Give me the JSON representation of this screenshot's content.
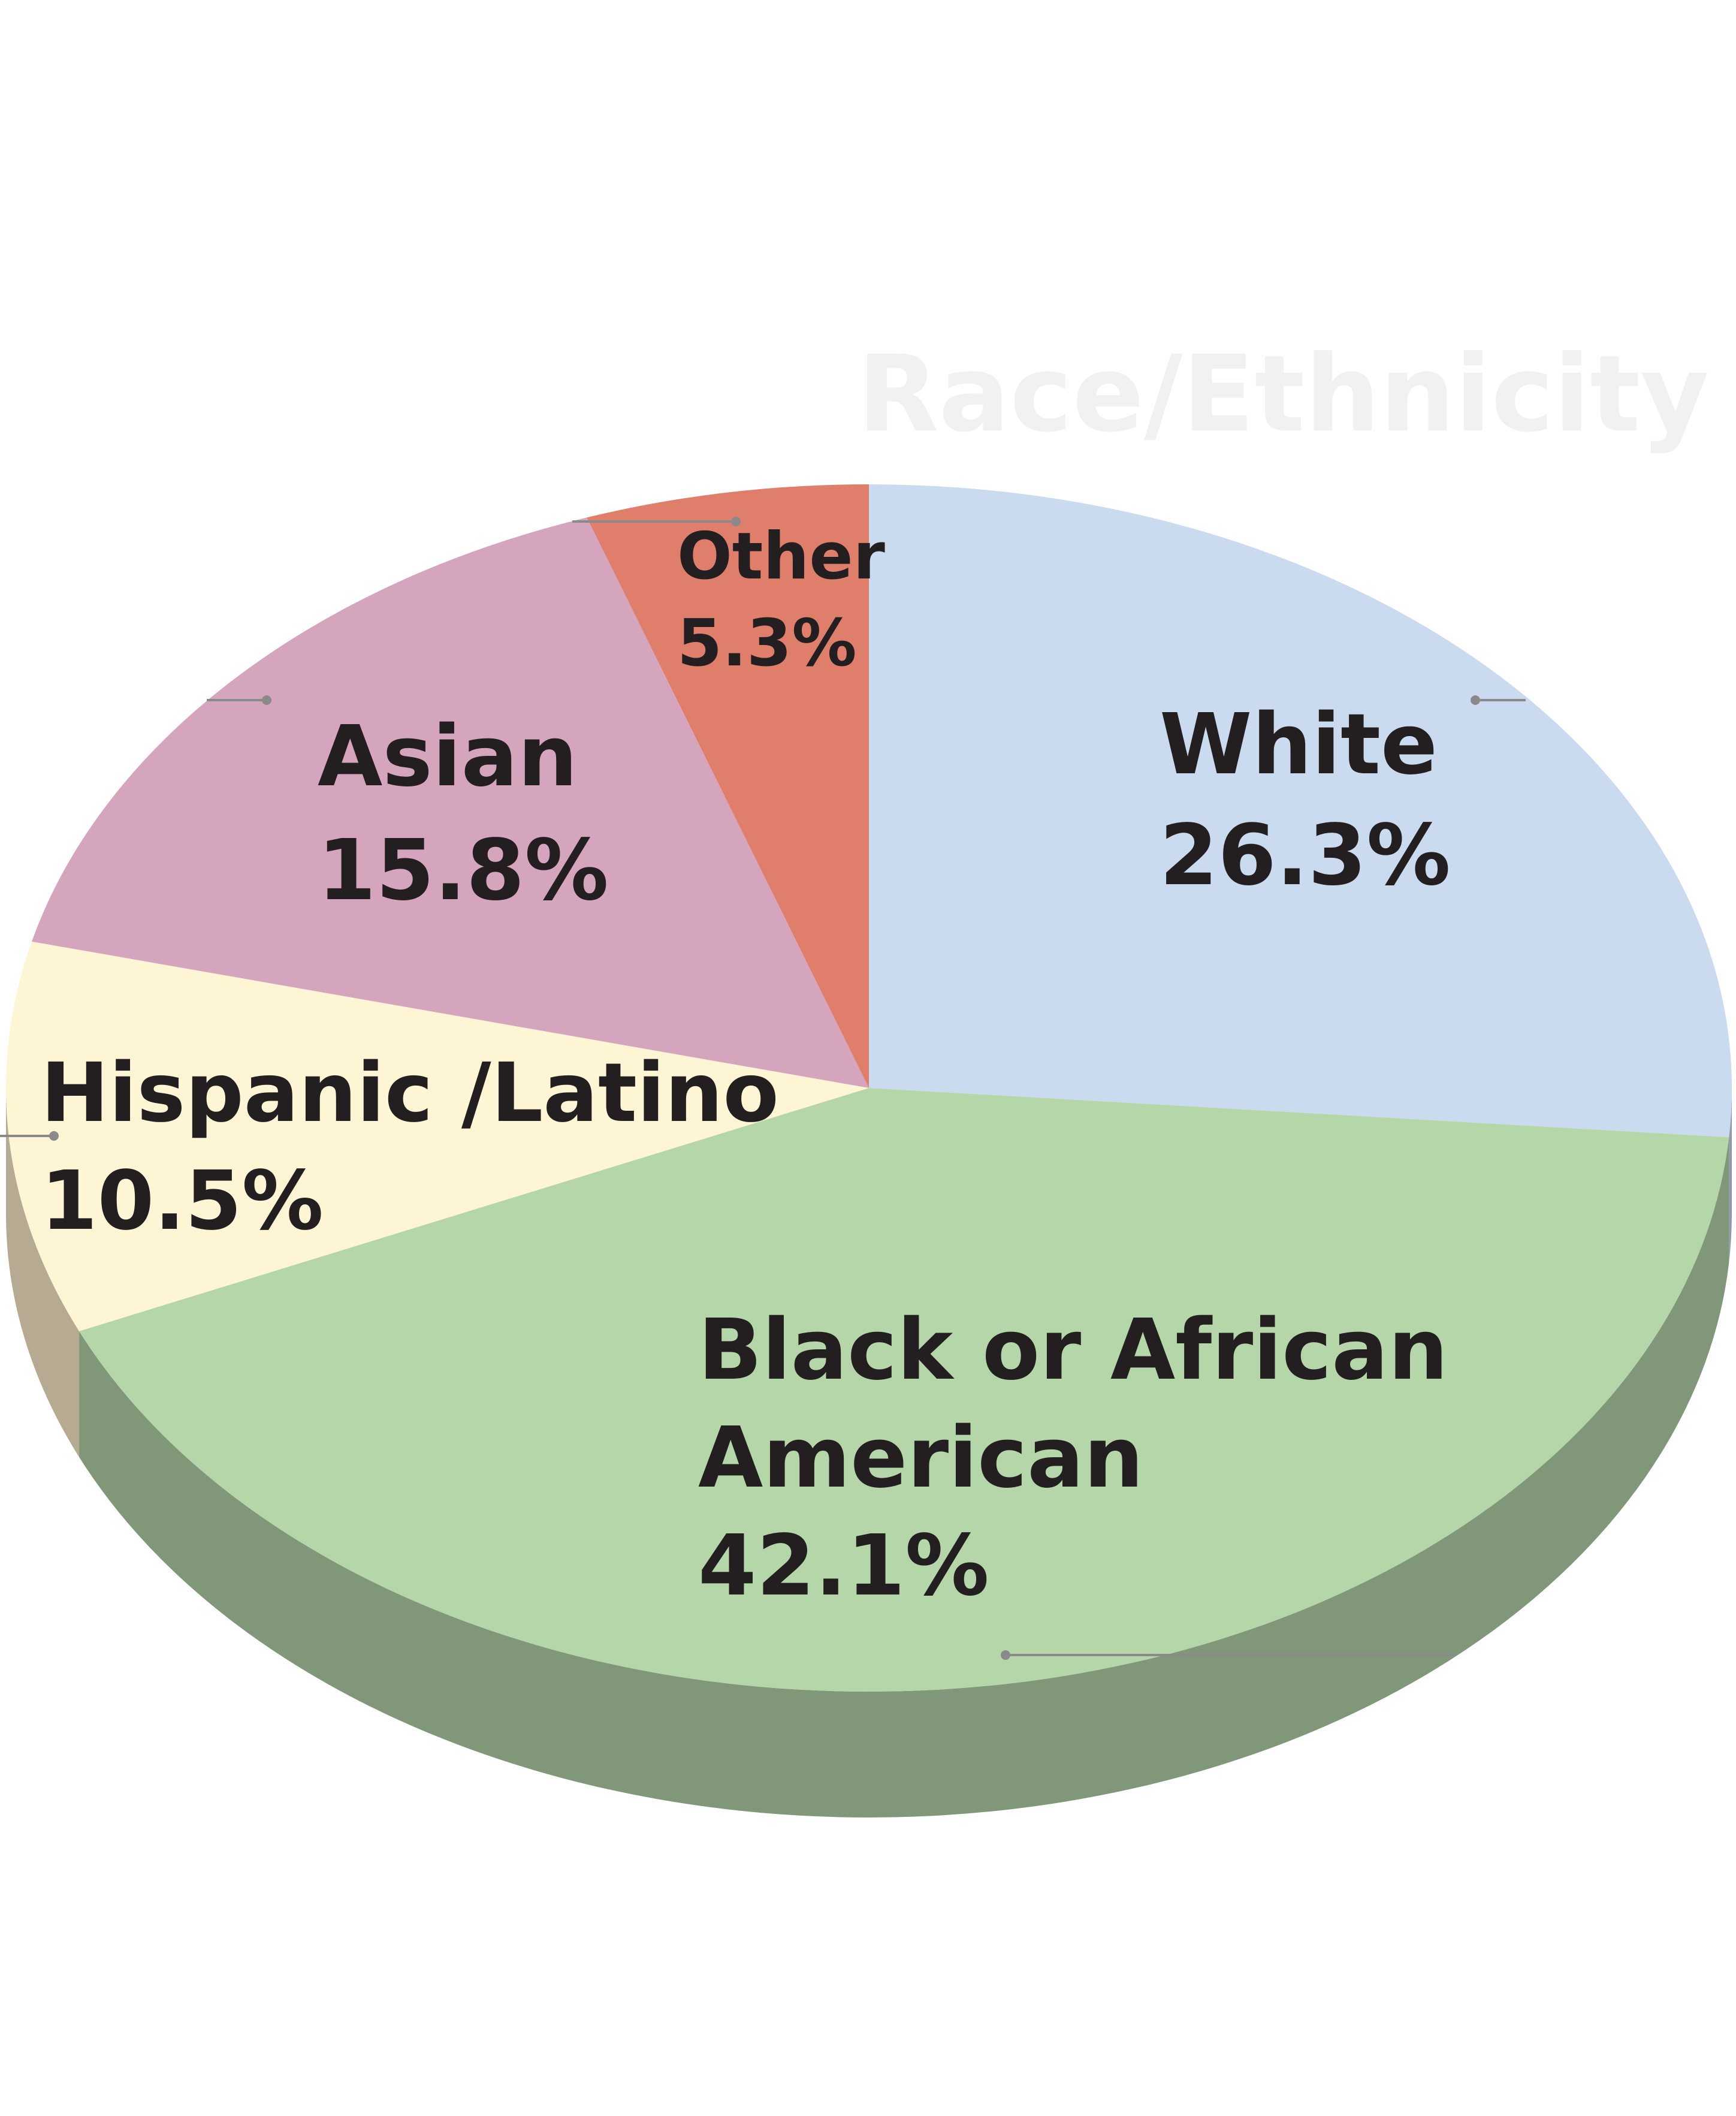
{
  "chart_data": {
    "type": "pie",
    "title": "Race/Ethnicity",
    "slices": [
      {
        "label_lines": [
          "White"
        ],
        "value": 26.3,
        "value_label": "26.3%",
        "color": "#cbdbef",
        "side_color": "#8d9bab"
      },
      {
        "label_lines": [
          "Black or African",
          "American"
        ],
        "value": 42.1,
        "value_label": "42.1%",
        "color": "#b5d6a8",
        "side_color": "#809879"
      },
      {
        "label_lines": [
          "Hispanic /Latino"
        ],
        "value": 10.5,
        "value_label": "10.5%",
        "color": "#fef5d4",
        "side_color": "#b6aa92"
      },
      {
        "label_lines": [
          "Asian"
        ],
        "value": 15.8,
        "value_label": "15.8%",
        "color": "#d5a5bd",
        "side_color": "#9a7386"
      },
      {
        "label_lines": [
          "Other"
        ],
        "value": 5.3,
        "value_label": "5.3%",
        "color": "#de7e6b",
        "side_color": "#a05c4e"
      }
    ],
    "start": "12 o'clock",
    "direction": "clockwise",
    "style": "3d",
    "legend": "none",
    "data_labels": "inside"
  }
}
